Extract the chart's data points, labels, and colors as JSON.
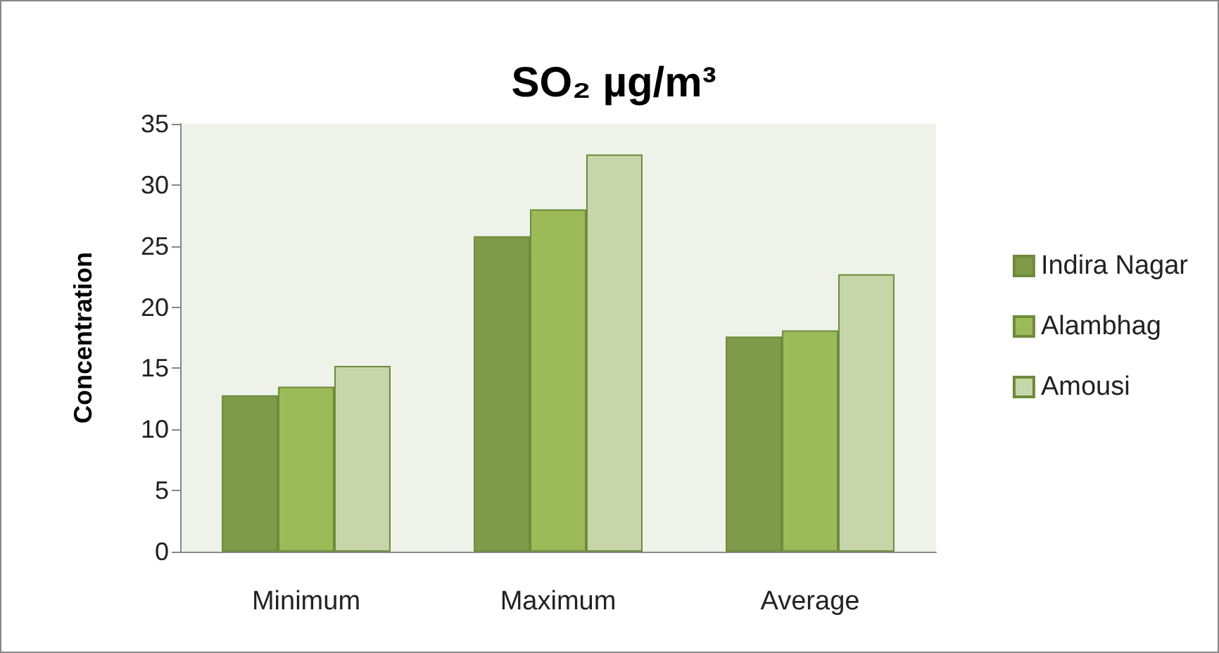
{
  "chart_data": {
    "type": "bar",
    "title": "SO₂ µg/m³",
    "ylabel": "Concentration",
    "categories": [
      "Minimum",
      "Maximum",
      "Average"
    ],
    "series": [
      {
        "name": "Indira Nagar",
        "color": "#7f9a48",
        "values": [
          12.8,
          25.8,
          17.6
        ]
      },
      {
        "name": "Alambhag",
        "color": "#9bbb59",
        "values": [
          13.5,
          28.0,
          18.1
        ]
      },
      {
        "name": "Amousi",
        "color": "#c6d6aa",
        "values": [
          15.2,
          32.5,
          22.7
        ]
      }
    ],
    "ylim": [
      0,
      35
    ],
    "yticks": [
      0,
      5,
      10,
      15,
      20,
      25,
      30,
      35
    ],
    "grid": false,
    "legend": "right"
  }
}
